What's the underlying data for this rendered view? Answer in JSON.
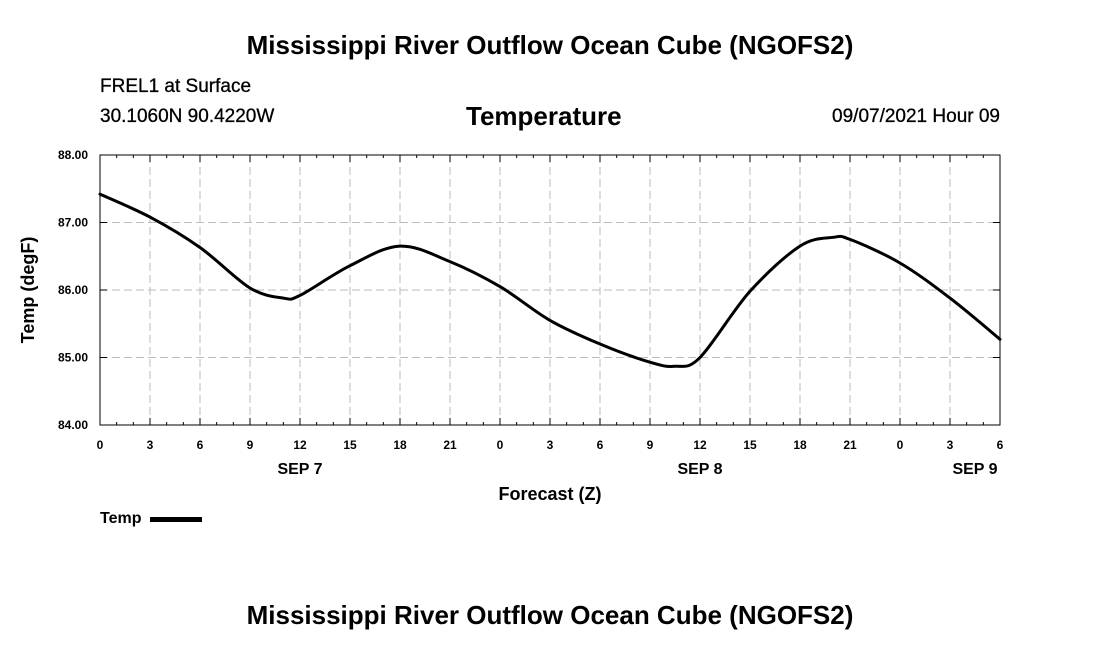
{
  "header": {
    "title": "Mississippi River Outflow Ocean Cube (NGOFS2)",
    "station": "FREL1 at Surface",
    "coords": "30.1060N  90.4220W",
    "variable": "Temperature",
    "datetime": "09/07/2021 Hour 09"
  },
  "footer": {
    "title": "Mississippi River Outflow Ocean Cube (NGOFS2)"
  },
  "chart_data": {
    "type": "line",
    "title": "Temperature",
    "xlabel": "Forecast (Z)",
    "ylabel": "Temp (degF)",
    "xlim": [
      0,
      54
    ],
    "ylim": [
      84.0,
      88.0
    ],
    "grid": true,
    "y_ticks": [
      "84.00",
      "85.00",
      "86.00",
      "87.00",
      "88.00"
    ],
    "x_ticks": [
      "0",
      "3",
      "6",
      "9",
      "12",
      "15",
      "18",
      "21",
      "0",
      "3",
      "6",
      "9",
      "12",
      "15",
      "18",
      "21",
      "0",
      "3",
      "6"
    ],
    "day_labels": [
      {
        "label": "SEP 7",
        "hour": 12
      },
      {
        "label": "SEP 8",
        "hour": 36
      },
      {
        "label": "SEP 9",
        "hour": 52.5
      }
    ],
    "series": [
      {
        "name": "Temp",
        "color": "#000000",
        "x": [
          0,
          3,
          6,
          9,
          11,
          12,
          15,
          18,
          21,
          24,
          27,
          30,
          33,
          34.5,
          36,
          39,
          42,
          44,
          45,
          48,
          51,
          54
        ],
        "values": [
          87.42,
          87.08,
          86.63,
          86.03,
          85.88,
          85.92,
          86.36,
          86.65,
          86.42,
          86.05,
          85.55,
          85.2,
          84.93,
          84.87,
          85.0,
          85.98,
          86.65,
          86.78,
          86.75,
          86.4,
          85.88,
          85.27
        ]
      }
    ]
  },
  "legend": {
    "label": "Temp"
  }
}
